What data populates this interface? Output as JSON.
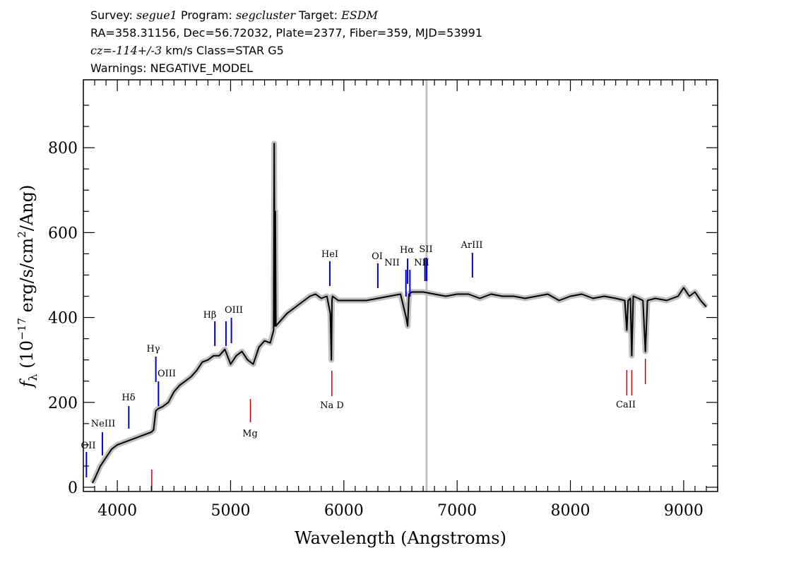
{
  "header": {
    "survey_label": "Survey:",
    "survey": "segue1",
    "program_label": "Program:",
    "program": "segcluster",
    "target_label": "Target:",
    "target": "ESDM",
    "line2": "RA=358.31156, Dec=56.72032, Plate=2377, Fiber=359, MJD=53991",
    "cz_label": "cz=",
    "cz_value": "-114+/-3",
    "cz_unit": "km/s",
    "class_text": "Class=STAR G5",
    "warnings": "Warnings: NEGATIVE_MODEL"
  },
  "chart_data": {
    "type": "line",
    "xlabel": "Wavelength (Angstroms)",
    "ylabel": "f_λ (10^-17 erg/s/cm^2/Ang)",
    "ylabel_parts": {
      "f": "f",
      "sub": "λ",
      "pre": " (10",
      "exp": "−17",
      "mid": " erg/s/cm",
      "exp2": "2",
      "post": "/Ang)"
    },
    "xlim": [
      3700,
      9300
    ],
    "ylim": [
      -10,
      960
    ],
    "xticks": [
      4000,
      5000,
      6000,
      7000,
      8000,
      9000
    ],
    "yticks": [
      0,
      200,
      400,
      600,
      800
    ],
    "vertical_marker_x": 6730,
    "series": [
      {
        "name": "flux",
        "color": "#000000",
        "x": [
          3780,
          3800,
          3850,
          3900,
          3950,
          4000,
          4050,
          4100,
          4150,
          4200,
          4250,
          4300,
          4320,
          4340,
          4360,
          4400,
          4450,
          4500,
          4550,
          4600,
          4650,
          4700,
          4750,
          4800,
          4850,
          4900,
          4950,
          5000,
          5050,
          5100,
          5150,
          5200,
          5250,
          5300,
          5350,
          5380,
          5385,
          5390,
          5395,
          5400,
          5450,
          5500,
          5550,
          5600,
          5650,
          5700,
          5750,
          5800,
          5850,
          5880,
          5890,
          5895,
          5900,
          5950,
          6000,
          6100,
          6200,
          6300,
          6400,
          6500,
          6550,
          6563,
          6575,
          6600,
          6700,
          6800,
          6900,
          7000,
          7100,
          7200,
          7300,
          7400,
          7500,
          7600,
          7700,
          7800,
          7900,
          8000,
          8100,
          8200,
          8300,
          8400,
          8480,
          8498,
          8510,
          8530,
          8542,
          8555,
          8600,
          8640,
          8662,
          8680,
          8750,
          8850,
          8950,
          9000,
          9050,
          9100,
          9150,
          9200
        ],
        "y": [
          10,
          20,
          50,
          70,
          90,
          100,
          105,
          110,
          115,
          120,
          125,
          130,
          135,
          180,
          185,
          190,
          200,
          225,
          240,
          250,
          260,
          275,
          295,
          300,
          310,
          310,
          325,
          290,
          310,
          320,
          300,
          290,
          330,
          345,
          340,
          370,
          810,
          380,
          650,
          380,
          395,
          410,
          420,
          430,
          440,
          450,
          455,
          445,
          450,
          410,
          300,
          440,
          450,
          440,
          440,
          440,
          440,
          445,
          450,
          455,
          400,
          380,
          455,
          460,
          460,
          455,
          450,
          455,
          455,
          445,
          455,
          450,
          450,
          445,
          450,
          455,
          440,
          450,
          455,
          445,
          450,
          445,
          440,
          370,
          440,
          445,
          310,
          450,
          445,
          440,
          320,
          440,
          445,
          440,
          450,
          470,
          450,
          460,
          440,
          425
        ]
      }
    ],
    "lines_emission": [
      {
        "name": "OII",
        "x": 3727
      },
      {
        "name": "NeIII",
        "x": 3868
      },
      {
        "name": "Hδ",
        "x": 4101
      },
      {
        "name": "Hγ",
        "x": 4340
      },
      {
        "name": "OIII",
        "x": 4363
      },
      {
        "name": "Hβ",
        "x": 4861
      },
      {
        "name": "OIII",
        "x": 4959
      },
      {
        "name": "OIII",
        "x": 5007
      },
      {
        "name": "HeI",
        "x": 5876
      },
      {
        "name": "OI",
        "x": 6300
      },
      {
        "name": "NII",
        "x": 6548
      },
      {
        "name": "Hα",
        "x": 6563
      },
      {
        "name": "NII",
        "x": 6583
      },
      {
        "name": "SII",
        "x": 6716
      },
      {
        "name": "SII",
        "x": 6731
      },
      {
        "name": "ArIII",
        "x": 7135
      }
    ],
    "lines_absorption": [
      {
        "name": "",
        "x": 4304
      },
      {
        "name": "Mg",
        "x": 5175
      },
      {
        "name": "Na D",
        "x": 5894
      },
      {
        "name": "CaII",
        "x": 8498
      },
      {
        "name": "",
        "x": 8542
      },
      {
        "name": "",
        "x": 8662
      }
    ],
    "labels": {
      "oii": "OII",
      "neiii": "NeIII",
      "hdelta": "Hδ",
      "hgamma": "Hγ",
      "oiii_a": "OIII",
      "hbeta": "Hβ",
      "oiii_b": "OIII",
      "hei": "HeI",
      "oi": "OI",
      "nii_a": "NII",
      "halpha": "Hα",
      "sii": "SII",
      "nii_b": "NII",
      "ariii": "ArIII",
      "mg": "Mg",
      "nad": "Na D",
      "caii": "CaII"
    },
    "colors": {
      "emission": "#0000cc",
      "absorption": "#cc0000",
      "error": "#c0c0c0",
      "marker": "#c0c0c0"
    }
  }
}
